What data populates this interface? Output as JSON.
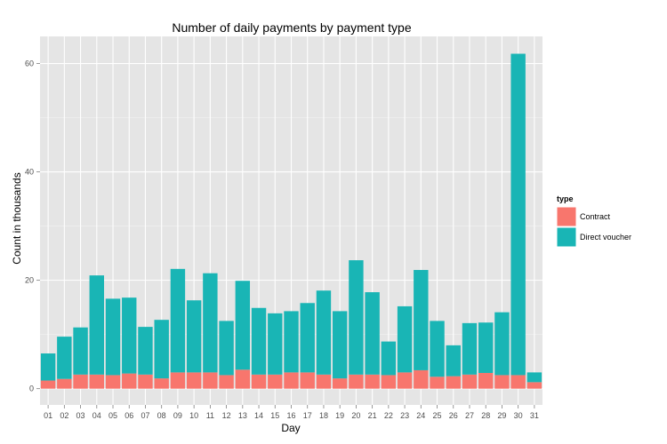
{
  "chart_data": {
    "type": "bar",
    "stacked": true,
    "title": "Number of daily payments by payment type",
    "xlabel": "Day",
    "ylabel": "Count in thousands",
    "ylim": [
      -3,
      65
    ],
    "yticks": [
      0,
      20,
      40,
      60
    ],
    "grid": true,
    "legend": {
      "title": "type",
      "position": "right"
    },
    "categories": [
      "01",
      "02",
      "03",
      "04",
      "05",
      "06",
      "07",
      "08",
      "09",
      "10",
      "11",
      "12",
      "13",
      "14",
      "15",
      "16",
      "17",
      "18",
      "19",
      "20",
      "21",
      "22",
      "23",
      "24",
      "25",
      "26",
      "27",
      "28",
      "29",
      "30",
      "31"
    ],
    "series": [
      {
        "name": "Contract",
        "color": "#F8766D",
        "values": [
          1.5,
          1.8,
          2.6,
          2.6,
          2.5,
          2.8,
          2.6,
          1.9,
          3.0,
          3.0,
          3.0,
          2.5,
          3.5,
          2.6,
          2.6,
          3.0,
          3.0,
          2.6,
          1.9,
          2.6,
          2.6,
          2.5,
          3.0,
          3.4,
          2.2,
          2.3,
          2.6,
          2.9,
          2.5,
          2.5,
          1.2
        ]
      },
      {
        "name": "Direct voucher",
        "color": "#19B5B5",
        "values": [
          5.0,
          7.8,
          8.7,
          18.3,
          14.1,
          14.0,
          8.8,
          10.8,
          19.1,
          13.3,
          18.3,
          10.0,
          16.4,
          12.3,
          11.3,
          11.3,
          12.8,
          15.5,
          12.4,
          21.1,
          15.2,
          6.2,
          12.2,
          18.5,
          10.3,
          5.7,
          9.5,
          9.3,
          11.6,
          59.3,
          1.8
        ]
      }
    ]
  }
}
